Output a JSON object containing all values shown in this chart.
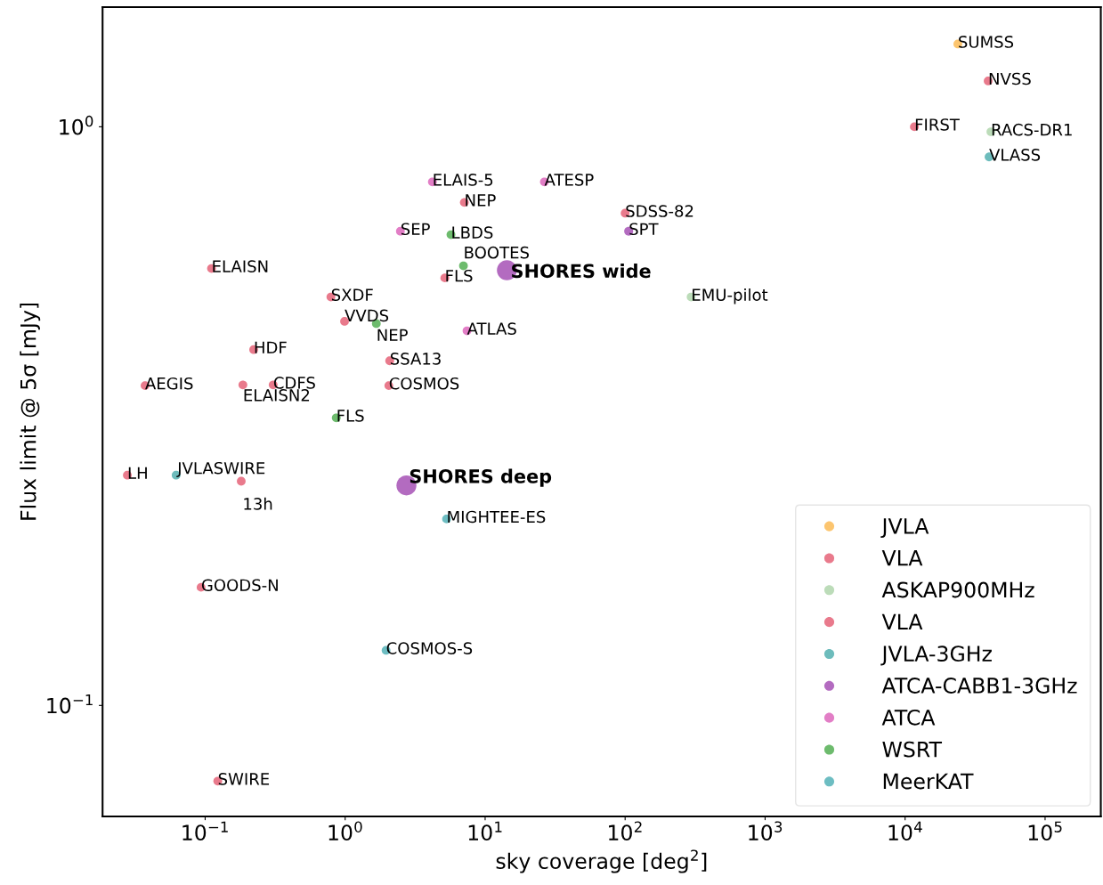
{
  "chart_data": {
    "type": "scatter",
    "xlabel": "sky coverage [deg$^{2}$]",
    "ylabel": "Flux limit @ 5σ [mJy]",
    "log": "xy",
    "xlim": [
      0.0185,
      250000
    ],
    "ylim": [
      0.0643,
      1.61
    ],
    "xticks": [
      {
        "value": 0.1,
        "label": "10$^{−1}$"
      },
      {
        "value": 1,
        "label": "10$^{0}$"
      },
      {
        "value": 10,
        "label": "10$^{1}$"
      },
      {
        "value": 100,
        "label": "10$^{2}$"
      },
      {
        "value": 1000,
        "label": "10$^{3}$"
      },
      {
        "value": 10000,
        "label": "10$^{4}$"
      },
      {
        "value": 100000,
        "label": "10$^{5}$"
      }
    ],
    "yticks": [
      {
        "value": 0.1,
        "label": "10$^{−1}$"
      },
      {
        "value": 1,
        "label": "10$^{0}$"
      }
    ],
    "grid": false,
    "legend": "bottom right",
    "marker": "circle",
    "series": [
      {
        "name": "JVLA",
        "color": "#fcc56f",
        "x": [
          23800
        ],
        "values": [
          1.39
        ]
      },
      {
        "name": "VLA",
        "color": "#e97a8c",
        "x": [
          39200,
          11650
        ],
        "values": [
          1.2,
          1.0
        ]
      },
      {
        "name": "ASKAP900MHz",
        "color": "#bcdcb9",
        "x": [
          41000,
          296
        ],
        "values": [
          0.98,
          0.508
        ]
      },
      {
        "name": "VLA",
        "color": "#e97a8c",
        "x": [
          0.111,
          0.791,
          0.99,
          0.222,
          0.0372,
          0.186,
          0.306,
          2.08,
          2.05,
          7.1,
          5.15,
          100,
          0.0278,
          0.181,
          0.0935,
          0.123
        ],
        "values": [
          0.569,
          0.508,
          0.461,
          0.412,
          0.357,
          0.358,
          0.358,
          0.394,
          0.357,
          0.74,
          0.548,
          0.709,
          0.25,
          0.244,
          0.16,
          0.074
        ]
      },
      {
        "name": "JVLA-3GHz",
        "color": "#6dbcbc",
        "x": [
          39800,
          0.062
        ],
        "values": [
          0.887,
          0.25
        ]
      },
      {
        "name": "ATCA-CABB1-3GHz",
        "color": "#b36bc0",
        "x": [
          106,
          14.3,
          2.74
        ],
        "values": [
          0.66,
          0.565,
          0.24
        ],
        "sizes": [
          0.2,
          1,
          1
        ]
      },
      {
        "name": "ATCA",
        "color": "#e27ec6",
        "x": [
          4.2,
          26.5,
          2.48,
          7.42
        ],
        "values": [
          0.803,
          0.803,
          0.66,
          0.444
        ]
      },
      {
        "name": "WSRT",
        "color": "#6dbb6d",
        "x": [
          5.7,
          7.0,
          1.67,
          0.864
        ],
        "values": [
          0.651,
          0.575,
          0.457,
          0.314
        ]
      },
      {
        "name": "MeerKAT",
        "color": "#6dbdc2",
        "x": [
          5.3,
          1.96
        ],
        "values": [
          0.21,
          0.1245
        ]
      }
    ],
    "annotations": [
      {
        "text": "SUMSS",
        "x": 23800,
        "y": 1.39
      },
      {
        "text": "NVSS",
        "x": 39200,
        "y": 1.2
      },
      {
        "text": "FIRST",
        "x": 11650,
        "y": 1.0
      },
      {
        "text": "RACS-DR1",
        "x": 41000,
        "y": 0.98
      },
      {
        "text": "EMU-pilot",
        "x": 296,
        "y": 0.508
      },
      {
        "text": "ELAISN",
        "x": 0.111,
        "y": 0.569
      },
      {
        "text": "SXDF",
        "x": 0.791,
        "y": 0.508
      },
      {
        "text": "VVDS",
        "x": 0.99,
        "y": 0.461
      },
      {
        "text": "HDF",
        "x": 0.222,
        "y": 0.412
      },
      {
        "text": "AEGIS",
        "x": 0.0372,
        "y": 0.357
      },
      {
        "text": "ELAISN2",
        "x": 0.186,
        "y": 0.358
      },
      {
        "text": "CDFS",
        "x": 0.306,
        "y": 0.358
      },
      {
        "text": "SSA13",
        "x": 2.08,
        "y": 0.394
      },
      {
        "text": "COSMOS",
        "x": 2.05,
        "y": 0.357
      },
      {
        "text": "NEP",
        "x": 7.1,
        "y": 0.74
      },
      {
        "text": "FLS",
        "x": 5.15,
        "y": 0.548
      },
      {
        "text": "SDSS-82",
        "x": 100,
        "y": 0.709
      },
      {
        "text": "LH",
        "x": 0.0278,
        "y": 0.25
      },
      {
        "text": "13h",
        "x": 0.181,
        "y": 0.244
      },
      {
        "text": "GOODS-N",
        "x": 0.0935,
        "y": 0.16
      },
      {
        "text": "SWIRE",
        "x": 0.123,
        "y": 0.074
      },
      {
        "text": "VLASS",
        "x": 39800,
        "y": 0.887
      },
      {
        "text": "JVLASWIRE",
        "x": 0.062,
        "y": 0.25
      },
      {
        "text": "SPT",
        "x": 106,
        "y": 0.66
      },
      {
        "text": "SHORES wide",
        "x": 14.3,
        "y": 0.565
      },
      {
        "text": "SHORES deep",
        "x": 2.74,
        "y": 0.24
      },
      {
        "text": "ELAIS-5",
        "x": 4.2,
        "y": 0.803
      },
      {
        "text": "ATESP",
        "x": 26.5,
        "y": 0.803
      },
      {
        "text": "SEP",
        "x": 2.48,
        "y": 0.66
      },
      {
        "text": "ATLAS",
        "x": 7.42,
        "y": 0.444
      },
      {
        "text": "LBDS",
        "x": 5.7,
        "y": 0.651
      },
      {
        "text": "BOOTES",
        "x": 7.0,
        "y": 0.575
      },
      {
        "text": "NEP",
        "x": 1.67,
        "y": 0.457
      },
      {
        "text": "FLS",
        "x": 0.864,
        "y": 0.314
      },
      {
        "text": "MIGHTEE-ES",
        "x": 5.3,
        "y": 0.21
      },
      {
        "text": "COSMOS-S",
        "x": 1.96,
        "y": 0.1245
      }
    ]
  }
}
